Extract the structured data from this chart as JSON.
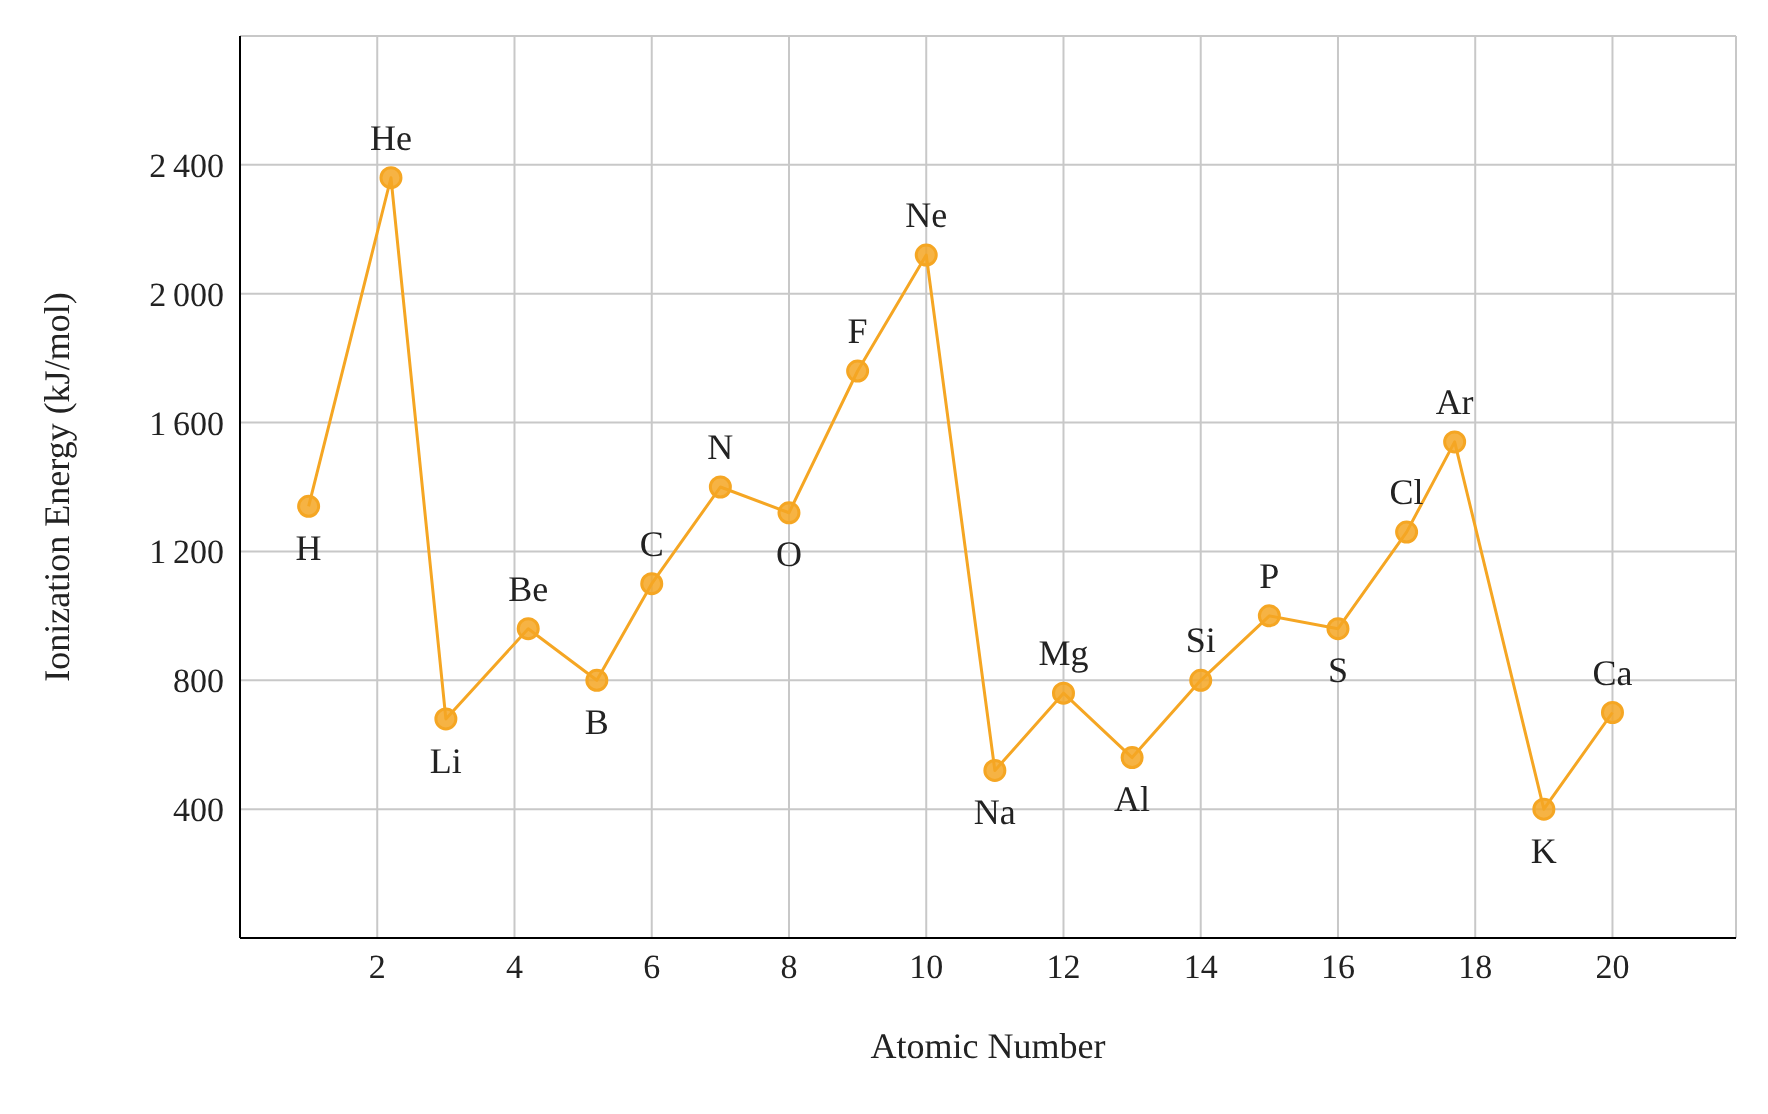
{
  "chart_data": {
    "type": "line",
    "xlabel": "Atomic Number",
    "ylabel": "Ionization Energy (kJ/mol)",
    "series": [
      {
        "color": "#f5a623",
        "x": [
          1,
          2.2,
          3,
          4.2,
          5.2,
          6,
          7,
          8,
          9,
          10,
          11,
          12,
          13,
          14,
          15,
          16,
          17,
          17.7,
          19,
          20
        ],
        "values": [
          1340,
          2360,
          680,
          960,
          800,
          1100,
          1400,
          1320,
          1760,
          2120,
          520,
          760,
          560,
          800,
          1000,
          960,
          1260,
          1540,
          400,
          700
        ]
      }
    ],
    "annotations": [
      {
        "text": "H",
        "x": 1,
        "y": 1340
      },
      {
        "text": "He",
        "x": 2.2,
        "y": 2360
      },
      {
        "text": "Li",
        "x": 3,
        "y": 680
      },
      {
        "text": "Be",
        "x": 4.2,
        "y": 960
      },
      {
        "text": "B",
        "x": 5.2,
        "y": 800
      },
      {
        "text": "C",
        "x": 6,
        "y": 1100
      },
      {
        "text": "N",
        "x": 7,
        "y": 1400
      },
      {
        "text": "O",
        "x": 8,
        "y": 1320
      },
      {
        "text": "F",
        "x": 9,
        "y": 1760
      },
      {
        "text": "Ne",
        "x": 10,
        "y": 2120
      },
      {
        "text": "Na",
        "x": 11,
        "y": 520
      },
      {
        "text": "Mg",
        "x": 12,
        "y": 760
      },
      {
        "text": "Al",
        "x": 13,
        "y": 560
      },
      {
        "text": "Si",
        "x": 14,
        "y": 800
      },
      {
        "text": "P",
        "x": 15,
        "y": 1000
      },
      {
        "text": "S",
        "x": 16,
        "y": 960
      },
      {
        "text": "Cl",
        "x": 17,
        "y": 1260
      },
      {
        "text": "Ar",
        "x": 17.7,
        "y": 1540
      },
      {
        "text": "K",
        "x": 19,
        "y": 400
      },
      {
        "text": "Ca",
        "x": 20,
        "y": 700
      }
    ],
    "xlim": [
      0,
      21.8
    ],
    "xticks": [
      2,
      4,
      6,
      8,
      10,
      12,
      14,
      16,
      18,
      20
    ],
    "ylim": [
      0,
      2800
    ],
    "yticks": [
      400,
      800,
      1200,
      1600,
      2000,
      2400
    ],
    "grid": true,
    "marker": "circle",
    "line_style": "solid"
  }
}
